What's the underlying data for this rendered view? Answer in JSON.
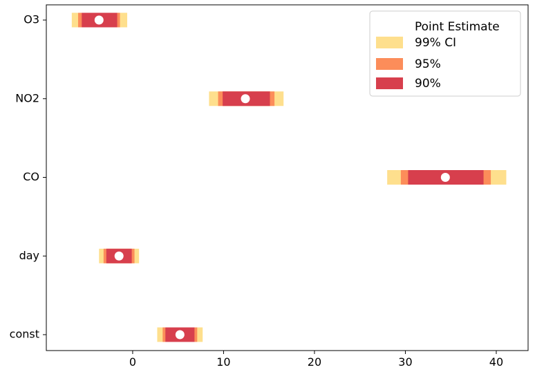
{
  "chart_data": {
    "type": "interval",
    "categories": [
      "O3",
      "NO2",
      "CO",
      "day",
      "const"
    ],
    "point_estimate": [
      -3.7,
      12.4,
      34.4,
      -1.5,
      5.2
    ],
    "intervals": {
      "ci99": [
        [
          -6.7,
          -0.6
        ],
        [
          8.4,
          16.6
        ],
        [
          28.0,
          41.1
        ],
        [
          -3.7,
          0.7
        ],
        [
          2.7,
          7.7
        ]
      ],
      "ci95": [
        [
          -6.0,
          -1.4
        ],
        [
          9.4,
          15.6
        ],
        [
          29.5,
          39.4
        ],
        [
          -3.2,
          0.2
        ],
        [
          3.3,
          7.1
        ]
      ],
      "ci90": [
        [
          -5.6,
          -1.7
        ],
        [
          9.9,
          15.1
        ],
        [
          30.3,
          38.6
        ],
        [
          -2.9,
          -0.1
        ],
        [
          3.6,
          6.8
        ]
      ]
    },
    "xlim": [
      -9.5,
      43.5
    ],
    "xticks": [
      0,
      10,
      20,
      30,
      40
    ],
    "xlabel": "",
    "ylabel": "",
    "grid": false,
    "legend": {
      "placement": "top-right",
      "entries": [
        "Point Estimate",
        "99% CI",
        "95%",
        "90%"
      ]
    },
    "colors": {
      "ci99": "#fedf8d",
      "ci95": "#fc8d5a",
      "ci90": "#d73f4d",
      "point": "#ffffff"
    }
  }
}
